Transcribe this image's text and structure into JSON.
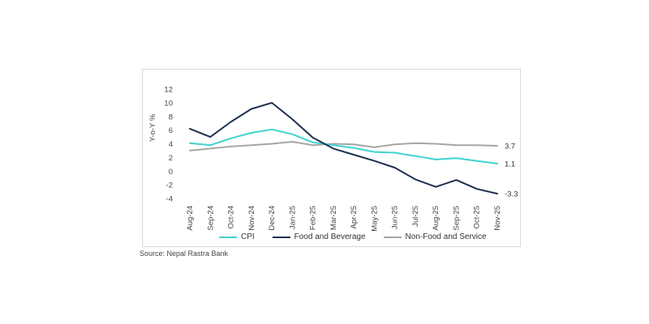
{
  "chart_data": {
    "type": "line",
    "ylabel": "Y-o-Y %",
    "xlabel": "",
    "ylim": [
      -4,
      12
    ],
    "yticks": [
      -4,
      -2,
      0,
      2,
      4,
      6,
      8,
      10,
      12
    ],
    "categories": [
      "Aug-24",
      "Sep-24",
      "Oct-24",
      "Nov-24",
      "Dec-24",
      "Jan-25",
      "Feb-25",
      "Mar-25",
      "Apr-25",
      "May-25",
      "Jun-25",
      "Jul-25",
      "Aug-25",
      "Sep-25",
      "Oct-25",
      "Nov-25"
    ],
    "series": [
      {
        "name": "CPI",
        "color": "#3fd3d0",
        "values": [
          4.1,
          3.8,
          4.8,
          5.6,
          6.1,
          5.4,
          4.2,
          3.8,
          3.4,
          2.8,
          2.7,
          2.2,
          1.7,
          1.9,
          1.5,
          1.1
        ],
        "end_label": "1.1"
      },
      {
        "name": "Food and Beverage",
        "color": "#1f3150",
        "values": [
          6.2,
          5.0,
          7.2,
          9.1,
          10.0,
          7.6,
          4.9,
          3.3,
          2.4,
          1.5,
          0.5,
          -1.2,
          -2.3,
          -1.3,
          -2.6,
          -3.3
        ],
        "end_label": "-3.3"
      },
      {
        "name": "Non-Food and Service",
        "color": "#a6a6a6",
        "values": [
          3.0,
          3.3,
          3.6,
          3.8,
          4.0,
          4.3,
          3.8,
          4.0,
          3.9,
          3.5,
          3.9,
          4.1,
          4.0,
          3.8,
          3.8,
          3.7
        ],
        "end_label": "3.7"
      }
    ],
    "legend_position": "bottom"
  },
  "source_text": "Source: Nepal Rastra Bank"
}
